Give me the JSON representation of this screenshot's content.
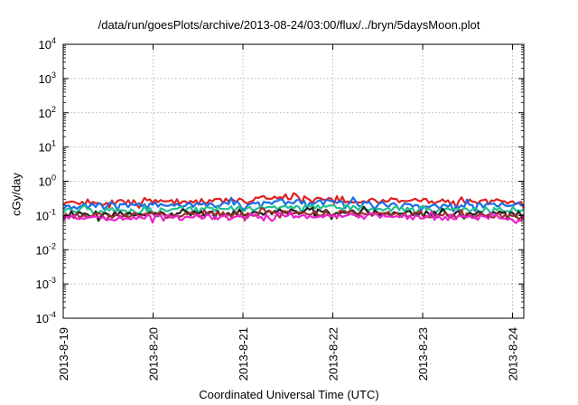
{
  "chart_data": {
    "type": "line",
    "title": "/data/run/goesPlots/archive/2013-08-24/03:00/flux/../bryn/5daysMoon.plot",
    "xlabel": "Coordinated Universal Time (UTC)",
    "ylabel": "cGy/day",
    "yscale": "log",
    "ylim": [
      0.0001,
      10000
    ],
    "xlim": [
      "2013-08-19T00:00",
      "2013-08-24T03:00"
    ],
    "grid": true,
    "legend": "none",
    "y_ticks": [
      {
        "value": 0.0001,
        "base": "10",
        "exp": "-4"
      },
      {
        "value": 0.001,
        "base": "10",
        "exp": "-3"
      },
      {
        "value": 0.01,
        "base": "10",
        "exp": "-2"
      },
      {
        "value": 0.1,
        "base": "10",
        "exp": "-1"
      },
      {
        "value": 1,
        "base": "10",
        "exp": "0"
      },
      {
        "value": 10,
        "base": "10",
        "exp": "1"
      },
      {
        "value": 100,
        "base": "10",
        "exp": "2"
      },
      {
        "value": 1000,
        "base": "10",
        "exp": "3"
      },
      {
        "value": 10000,
        "base": "10",
        "exp": "4"
      }
    ],
    "x_ticks": [
      {
        "value": "2013-08-19T00:00",
        "label": "2013-8-19"
      },
      {
        "value": "2013-08-20T00:00",
        "label": "2013-8-20"
      },
      {
        "value": "2013-08-21T00:00",
        "label": "2013-8-21"
      },
      {
        "value": "2013-08-22T00:00",
        "label": "2013-8-22"
      },
      {
        "value": "2013-08-23T00:00",
        "label": "2013-8-23"
      },
      {
        "value": "2013-08-24T00:00",
        "label": "2013-8-24"
      }
    ],
    "series": [
      {
        "color": "#e02020",
        "x": [
          "2013-08-19T00:00",
          "2013-08-19T12:00",
          "2013-08-20T00:00",
          "2013-08-20T12:00",
          "2013-08-21T00:00",
          "2013-08-21T12:00",
          "2013-08-22T00:00",
          "2013-08-22T12:00",
          "2013-08-23T00:00",
          "2013-08-23T12:00",
          "2013-08-24T00:00",
          "2013-08-24T03:00"
        ],
        "y": [
          0.24,
          0.24,
          0.25,
          0.25,
          0.28,
          0.36,
          0.3,
          0.27,
          0.26,
          0.25,
          0.25,
          0.25
        ]
      },
      {
        "color": "#1a6ee8",
        "x": [
          "2013-08-19T00:00",
          "2013-08-19T12:00",
          "2013-08-20T00:00",
          "2013-08-20T12:00",
          "2013-08-21T00:00",
          "2013-08-21T12:00",
          "2013-08-22T00:00",
          "2013-08-22T12:00",
          "2013-08-23T00:00",
          "2013-08-23T12:00",
          "2013-08-24T00:00",
          "2013-08-24T03:00"
        ],
        "y": [
          0.18,
          0.2,
          0.19,
          0.2,
          0.23,
          0.25,
          0.24,
          0.21,
          0.2,
          0.2,
          0.21,
          0.2
        ]
      },
      {
        "color": "#20c090",
        "x": [
          "2013-08-19T00:00",
          "2013-08-19T12:00",
          "2013-08-20T00:00",
          "2013-08-20T12:00",
          "2013-08-21T00:00",
          "2013-08-21T12:00",
          "2013-08-22T00:00",
          "2013-08-22T12:00",
          "2013-08-23T00:00",
          "2013-08-23T12:00",
          "2013-08-24T00:00",
          "2013-08-24T03:00"
        ],
        "y": [
          0.14,
          0.14,
          0.14,
          0.15,
          0.16,
          0.18,
          0.17,
          0.16,
          0.15,
          0.15,
          0.15,
          0.14
        ]
      },
      {
        "color": "#222222",
        "x": [
          "2013-08-19T00:00",
          "2013-08-19T12:00",
          "2013-08-20T00:00",
          "2013-08-20T12:00",
          "2013-08-21T00:00",
          "2013-08-21T12:00",
          "2013-08-22T00:00",
          "2013-08-22T12:00",
          "2013-08-23T00:00",
          "2013-08-23T12:00",
          "2013-08-24T00:00",
          "2013-08-24T03:00"
        ],
        "y": [
          0.11,
          0.11,
          0.11,
          0.115,
          0.12,
          0.13,
          0.125,
          0.12,
          0.115,
          0.11,
          0.11,
          0.11
        ]
      },
      {
        "color": "#a03030",
        "x": [
          "2013-08-19T00:00",
          "2013-08-19T12:00",
          "2013-08-20T00:00",
          "2013-08-20T12:00",
          "2013-08-21T00:00",
          "2013-08-21T12:00",
          "2013-08-22T00:00",
          "2013-08-22T12:00",
          "2013-08-23T00:00",
          "2013-08-23T12:00",
          "2013-08-24T00:00",
          "2013-08-24T03:00"
        ],
        "y": [
          0.1,
          0.1,
          0.1,
          0.105,
          0.11,
          0.12,
          0.115,
          0.11,
          0.105,
          0.1,
          0.1,
          0.1
        ]
      },
      {
        "color": "#ee22cc",
        "x": [
          "2013-08-19T00:00",
          "2013-08-19T12:00",
          "2013-08-20T00:00",
          "2013-08-20T12:00",
          "2013-08-21T00:00",
          "2013-08-21T12:00",
          "2013-08-22T00:00",
          "2013-08-22T12:00",
          "2013-08-23T00:00",
          "2013-08-23T12:00",
          "2013-08-24T00:00",
          "2013-08-24T03:00"
        ],
        "y": [
          0.085,
          0.085,
          0.085,
          0.09,
          0.095,
          0.1,
          0.098,
          0.092,
          0.088,
          0.086,
          0.085,
          0.08
        ]
      }
    ]
  }
}
